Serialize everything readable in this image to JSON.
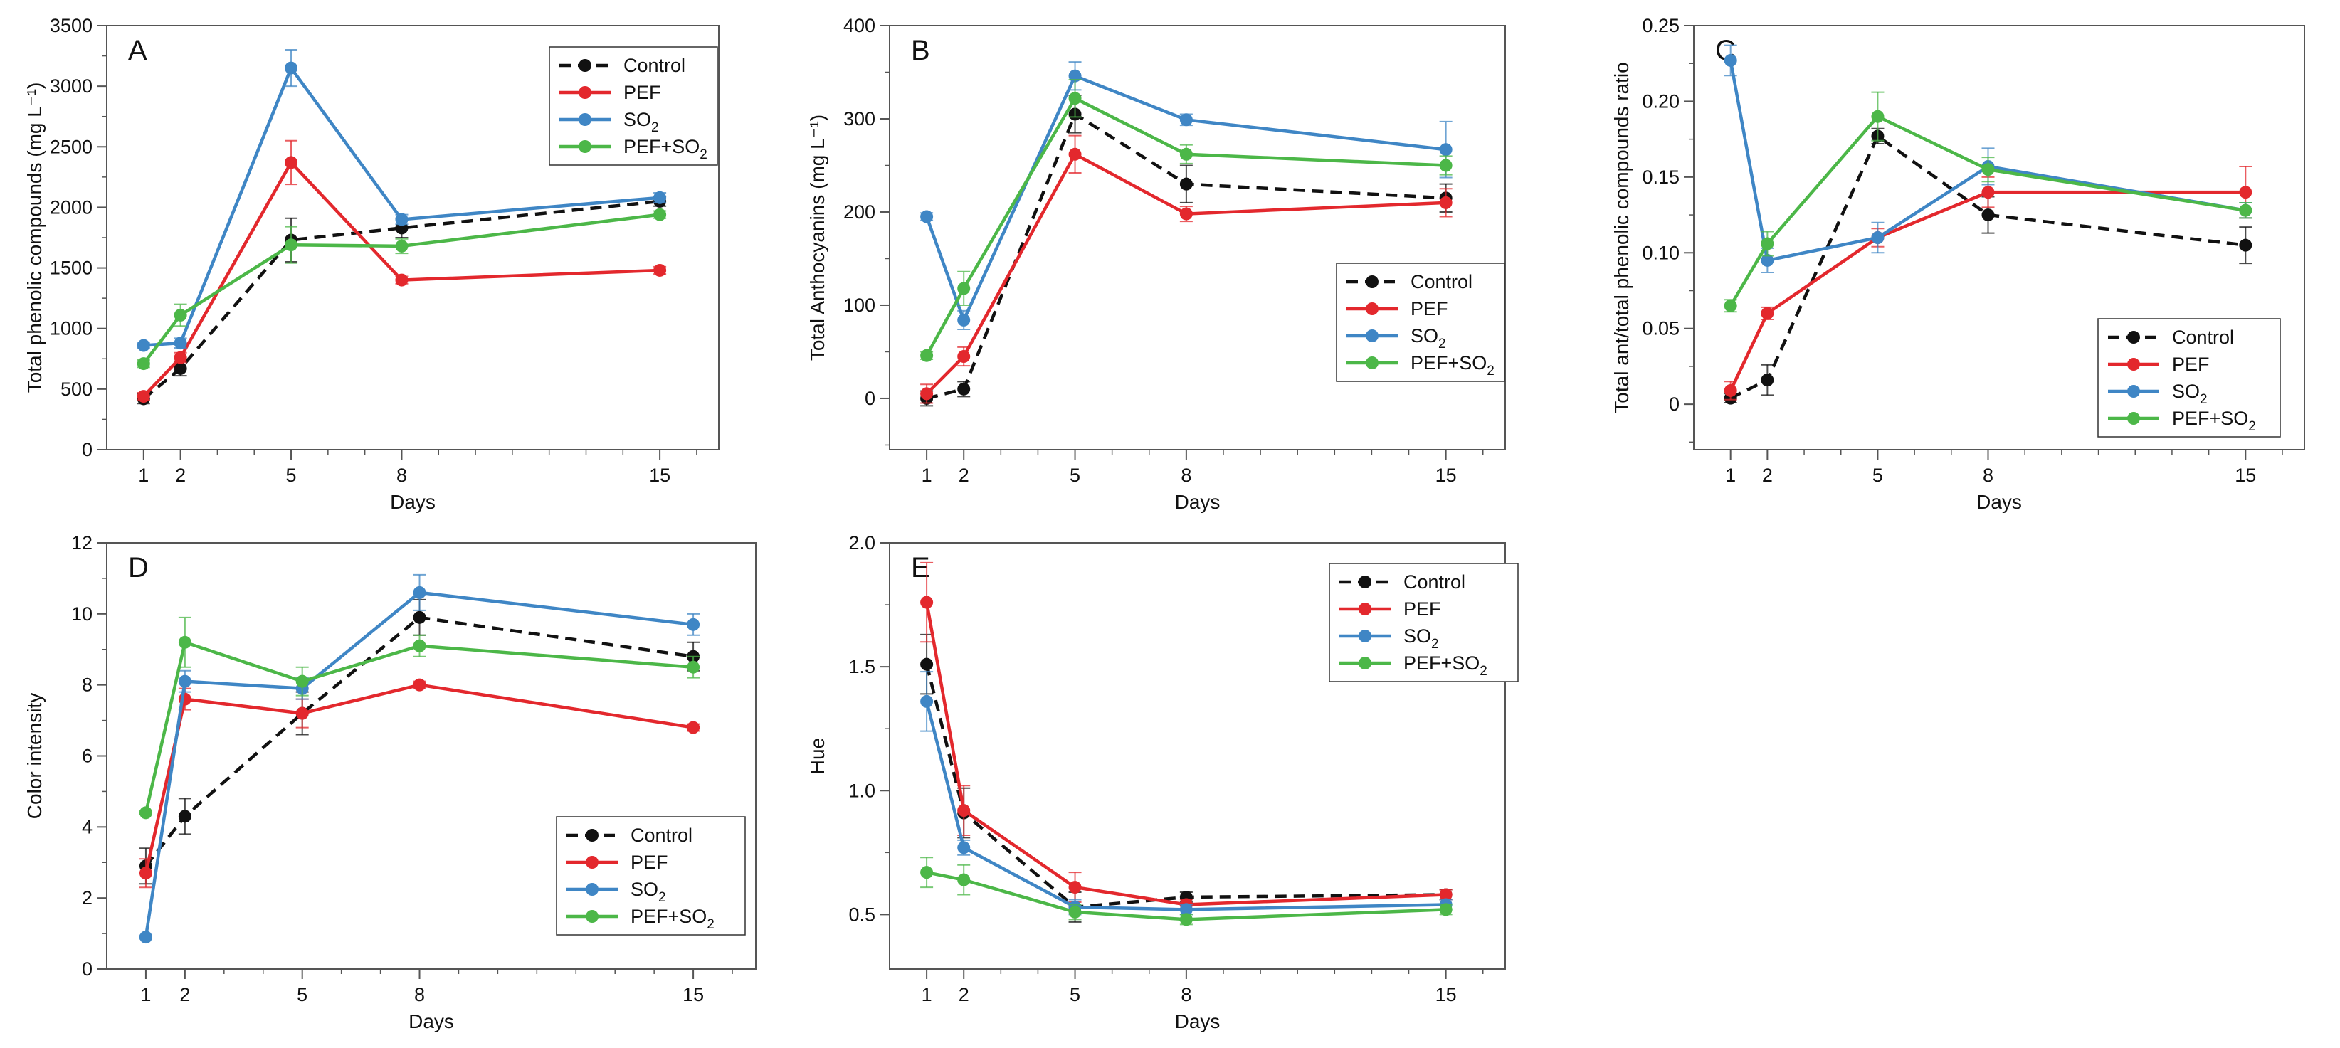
{
  "figure": {
    "name": "Multi-panel line chart of wine parameters over days"
  },
  "colors": {
    "Control": "#111111",
    "PEF": "#e3282d",
    "SO2": "#3f86c5",
    "PEF+SO2": "#4cb748"
  },
  "legend_labels": [
    {
      "key": "Control",
      "text": "Control",
      "sub": ""
    },
    {
      "key": "PEF",
      "text": "PEF",
      "sub": ""
    },
    {
      "key": "SO2",
      "text": "SO",
      "sub": "2"
    },
    {
      "key": "PEF+SO2",
      "text": "PEF+SO",
      "sub": "2"
    }
  ],
  "chart_data": [
    {
      "panel": "A",
      "type": "line",
      "xlabel": "Days",
      "ylabel": "Total phenolic compounds (mg L⁻¹)",
      "x": [
        1,
        2,
        5,
        8,
        15
      ],
      "xticks": [
        "1",
        "2",
        "5",
        "8",
        "15"
      ],
      "ylim": [
        0,
        3500
      ],
      "yticks": [
        "0",
        "500",
        "1000",
        "1500",
        "2000",
        "2500",
        "3000",
        "3500"
      ],
      "legend_position": "top-right",
      "series": [
        {
          "name": "Control",
          "values": [
            420,
            670,
            1730,
            1830,
            2050
          ],
          "errors": [
            40,
            60,
            180,
            80,
            40
          ]
        },
        {
          "name": "PEF",
          "values": [
            440,
            760,
            2370,
            1400,
            1480
          ],
          "errors": [
            30,
            40,
            180,
            30,
            30
          ]
        },
        {
          "name": "SO2",
          "values": [
            860,
            880,
            3150,
            1900,
            2080
          ],
          "errors": [
            20,
            40,
            150,
            40,
            40
          ]
        },
        {
          "name": "PEF+SO2",
          "values": [
            710,
            1110,
            1690,
            1680,
            1940
          ],
          "errors": [
            30,
            90,
            150,
            60,
            30
          ]
        }
      ]
    },
    {
      "panel": "B",
      "type": "line",
      "xlabel": "Days",
      "ylabel": "Total Anthocyanins (mg L⁻¹)",
      "x": [
        1,
        2,
        5,
        8,
        15
      ],
      "xticks": [
        "1",
        "2",
        "5",
        "8",
        "15"
      ],
      "ylim": [
        -55,
        400
      ],
      "yticks": [
        "0",
        "100",
        "200",
        "300",
        "400"
      ],
      "legend_position": "lower-right",
      "series": [
        {
          "name": "Control",
          "values": [
            0,
            10,
            305,
            230,
            215
          ],
          "errors": [
            8,
            8,
            20,
            20,
            15
          ]
        },
        {
          "name": "PEF",
          "values": [
            5,
            45,
            262,
            198,
            210
          ],
          "errors": [
            10,
            10,
            20,
            8,
            15
          ]
        },
        {
          "name": "SO2",
          "values": [
            195,
            84,
            346,
            299,
            267
          ],
          "errors": [
            4,
            10,
            15,
            6,
            30
          ]
        },
        {
          "name": "PEF+SO2",
          "values": [
            46,
            118,
            322,
            262,
            250
          ],
          "errors": [
            4,
            18,
            20,
            10,
            10
          ]
        }
      ]
    },
    {
      "panel": "C",
      "type": "line",
      "xlabel": "Days",
      "ylabel": "Total ant/total phenolic compounds ratio",
      "x": [
        1,
        2,
        5,
        8,
        15
      ],
      "xticks": [
        "1",
        "2",
        "5",
        "8",
        "15"
      ],
      "ylim": [
        -0.03,
        0.25
      ],
      "yticks": [
        "0",
        "0.05",
        "0.10",
        "0.15",
        "0.20",
        "0.25"
      ],
      "legend_position": "lower-right",
      "series": [
        {
          "name": "Control",
          "values": [
            0.004,
            0.016,
            0.177,
            0.125,
            0.105
          ],
          "errors": [
            0.003,
            0.01,
            0.005,
            0.012,
            0.012
          ]
        },
        {
          "name": "PEF",
          "values": [
            0.009,
            0.06,
            0.11,
            0.14,
            0.14
          ],
          "errors": [
            0.006,
            0.004,
            0.006,
            0.01,
            0.017
          ]
        },
        {
          "name": "SO2",
          "values": [
            0.227,
            0.095,
            0.11,
            0.157,
            0.128
          ],
          "errors": [
            0.01,
            0.008,
            0.01,
            0.012,
            0.005
          ]
        },
        {
          "name": "PEF+SO2",
          "values": [
            0.065,
            0.106,
            0.19,
            0.155,
            0.128
          ],
          "errors": [
            0.004,
            0.008,
            0.016,
            0.008,
            0.005
          ]
        }
      ]
    },
    {
      "panel": "D",
      "type": "line",
      "xlabel": "Days",
      "ylabel": "Color intensity",
      "x": [
        1,
        2,
        5,
        8,
        15
      ],
      "xticks": [
        "1",
        "2",
        "5",
        "8",
        "15"
      ],
      "ylim": [
        0,
        12
      ],
      "yticks": [
        "0",
        "2",
        "4",
        "6",
        "8",
        "10",
        "12"
      ],
      "legend_position": "lower-right",
      "series": [
        {
          "name": "Control",
          "values": [
            2.9,
            4.3,
            7.2,
            9.9,
            8.8
          ],
          "errors": [
            0.5,
            0.5,
            0.6,
            0.5,
            0.4
          ]
        },
        {
          "name": "PEF",
          "values": [
            2.7,
            7.6,
            7.2,
            8.0,
            6.8
          ],
          "errors": [
            0.4,
            0.3,
            0.4,
            0.1,
            0.1
          ]
        },
        {
          "name": "SO2",
          "values": [
            0.9,
            8.1,
            7.9,
            10.6,
            9.7
          ],
          "errors": [
            0.05,
            0.3,
            0.3,
            0.5,
            0.3
          ]
        },
        {
          "name": "PEF+SO2",
          "values": [
            4.4,
            9.2,
            8.1,
            9.1,
            8.5
          ],
          "errors": [
            0.05,
            0.7,
            0.4,
            0.3,
            0.3
          ]
        }
      ]
    },
    {
      "panel": "E",
      "type": "line",
      "xlabel": "Days",
      "ylabel": "Hue",
      "x": [
        1,
        2,
        5,
        8,
        15
      ],
      "xticks": [
        "1",
        "2",
        "5",
        "8",
        "15"
      ],
      "ylim": [
        0.28,
        2.0
      ],
      "yticks": [
        "0.5",
        "1.0",
        "1.5",
        "2.0"
      ],
      "legend_position": "top-right",
      "series": [
        {
          "name": "Control",
          "values": [
            1.51,
            0.91,
            0.53,
            0.57,
            0.58
          ],
          "errors": [
            0.12,
            0.1,
            0.06,
            0.02,
            0.02
          ]
        },
        {
          "name": "PEF",
          "values": [
            1.76,
            0.92,
            0.61,
            0.54,
            0.58
          ],
          "errors": [
            0.16,
            0.1,
            0.06,
            0.02,
            0.02
          ]
        },
        {
          "name": "SO2",
          "values": [
            1.36,
            0.77,
            0.53,
            0.52,
            0.54
          ],
          "errors": [
            0.12,
            0.03,
            0.03,
            0.02,
            0.02
          ]
        },
        {
          "name": "PEF+SO2",
          "values": [
            0.67,
            0.64,
            0.51,
            0.48,
            0.52
          ],
          "errors": [
            0.06,
            0.06,
            0.03,
            0.02,
            0.02
          ]
        }
      ]
    }
  ]
}
